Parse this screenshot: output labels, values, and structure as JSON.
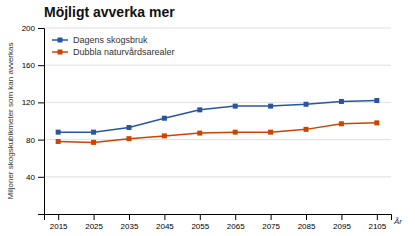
{
  "chart_data": {
    "type": "line",
    "title": "Möjligt avverka mer",
    "x_label": "År",
    "y_label": "Miljoner skogskubikmeter som kan avverkas",
    "x": [
      2015,
      2025,
      2035,
      2045,
      2055,
      2065,
      2075,
      2085,
      2095,
      2105
    ],
    "series": [
      {
        "name": "Dagens skogsbruk",
        "color": "#2855a0",
        "marker": "square",
        "values": [
          88,
          88,
          93,
          103,
          112,
          116,
          116,
          118,
          121,
          122
        ]
      },
      {
        "name": "Dubbla naturvårdsarealer",
        "color": "#cc4400",
        "marker": "square",
        "values": [
          78,
          77,
          81,
          84,
          87,
          88,
          88,
          91,
          97,
          98
        ]
      }
    ],
    "xlim": [
      2011,
      2109
    ],
    "xticks": [
      2015,
      2025,
      2035,
      2045,
      2055,
      2065,
      2075,
      2085,
      2095,
      2105
    ],
    "ylim": [
      0,
      200
    ],
    "yticks": [
      40,
      80,
      120,
      160,
      200
    ],
    "grid": true,
    "legend": "top-left"
  }
}
